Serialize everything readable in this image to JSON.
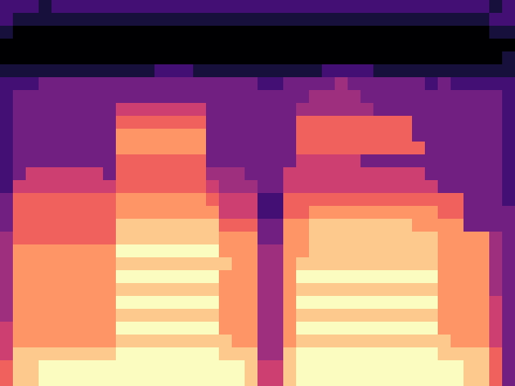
{
  "chart_data": {
    "type": "heatmap",
    "color": "magma",
    "tick_labels": false,
    "cells": [
      [
        2,
        2,
        2,
        1,
        2,
        2,
        2,
        2,
        2,
        2,
        2,
        2,
        2,
        2,
        2,
        2,
        2,
        2,
        2,
        2,
        2,
        2,
        2,
        2,
        2,
        2,
        2,
        2,
        2,
        2,
        2,
        2,
        2,
        2,
        2,
        2,
        2,
        2,
        1,
        2
      ],
      [
        2,
        1,
        1,
        1,
        1,
        1,
        1,
        1,
        1,
        1,
        1,
        1,
        1,
        1,
        1,
        1,
        1,
        1,
        1,
        1,
        1,
        1,
        1,
        1,
        1,
        1,
        1,
        1,
        1,
        1,
        1,
        1,
        1,
        1,
        1,
        1,
        1,
        1,
        2,
        2
      ],
      [
        1,
        0,
        0,
        0,
        0,
        0,
        0,
        0,
        0,
        0,
        0,
        0,
        0,
        0,
        0,
        0,
        0,
        0,
        0,
        0,
        0,
        0,
        0,
        0,
        0,
        0,
        0,
        0,
        0,
        0,
        0,
        0,
        0,
        0,
        0,
        0,
        0,
        0,
        1,
        1
      ],
      [
        0,
        0,
        0,
        0,
        0,
        0,
        0,
        0,
        0,
        0,
        0,
        0,
        0,
        0,
        0,
        0,
        0,
        0,
        0,
        0,
        0,
        0,
        0,
        0,
        0,
        0,
        0,
        0,
        0,
        0,
        0,
        0,
        0,
        0,
        0,
        0,
        0,
        0,
        0,
        0
      ],
      [
        0,
        0,
        0,
        0,
        0,
        0,
        0,
        0,
        0,
        0,
        0,
        0,
        0,
        0,
        0,
        0,
        0,
        0,
        0,
        0,
        0,
        0,
        0,
        0,
        0,
        0,
        0,
        0,
        0,
        0,
        0,
        0,
        0,
        0,
        0,
        0,
        0,
        0,
        0,
        1
      ],
      [
        1,
        1,
        1,
        1,
        1,
        1,
        1,
        1,
        1,
        1,
        1,
        1,
        2,
        2,
        2,
        1,
        1,
        1,
        1,
        1,
        1,
        1,
        1,
        1,
        1,
        2,
        2,
        2,
        2,
        1,
        1,
        1,
        1,
        1,
        1,
        1,
        1,
        1,
        1,
        1
      ],
      [
        2,
        2,
        2,
        3,
        3,
        3,
        3,
        3,
        3,
        3,
        3,
        3,
        3,
        3,
        3,
        3,
        3,
        3,
        3,
        3,
        2,
        2,
        3,
        3,
        3,
        3,
        4,
        3,
        3,
        3,
        3,
        3,
        3,
        2,
        3,
        2,
        2,
        2,
        2,
        2
      ],
      [
        2,
        3,
        3,
        3,
        3,
        3,
        3,
        3,
        3,
        3,
        3,
        3,
        3,
        3,
        3,
        3,
        3,
        3,
        3,
        3,
        3,
        3,
        3,
        3,
        4,
        4,
        4,
        4,
        3,
        3,
        3,
        3,
        3,
        3,
        3,
        3,
        3,
        3,
        3,
        2
      ],
      [
        2,
        3,
        3,
        3,
        3,
        3,
        3,
        3,
        3,
        5,
        5,
        5,
        5,
        5,
        5,
        5,
        3,
        3,
        3,
        3,
        3,
        3,
        3,
        4,
        4,
        4,
        4,
        4,
        4,
        3,
        3,
        3,
        3,
        3,
        3,
        3,
        3,
        3,
        3,
        2
      ],
      [
        2,
        3,
        3,
        3,
        3,
        3,
        3,
        3,
        3,
        6,
        6,
        6,
        6,
        6,
        6,
        6,
        3,
        3,
        3,
        3,
        3,
        3,
        3,
        6,
        6,
        6,
        6,
        6,
        6,
        6,
        6,
        6,
        3,
        3,
        3,
        3,
        3,
        3,
        3,
        2
      ],
      [
        2,
        3,
        3,
        3,
        3,
        3,
        3,
        3,
        3,
        7,
        7,
        7,
        7,
        7,
        7,
        7,
        3,
        3,
        3,
        3,
        3,
        3,
        3,
        6,
        6,
        6,
        6,
        6,
        6,
        6,
        6,
        6,
        3,
        3,
        3,
        3,
        3,
        3,
        3,
        2
      ],
      [
        2,
        3,
        3,
        3,
        3,
        3,
        3,
        3,
        3,
        7,
        7,
        7,
        7,
        7,
        7,
        7,
        3,
        3,
        3,
        3,
        3,
        3,
        3,
        6,
        6,
        6,
        6,
        6,
        6,
        6,
        6,
        6,
        6,
        3,
        3,
        3,
        3,
        3,
        3,
        2
      ],
      [
        2,
        3,
        3,
        3,
        3,
        3,
        3,
        3,
        3,
        6,
        6,
        6,
        6,
        6,
        6,
        6,
        3,
        3,
        3,
        3,
        3,
        3,
        3,
        5,
        5,
        5,
        5,
        5,
        3,
        3,
        3,
        3,
        3,
        3,
        3,
        3,
        3,
        3,
        3,
        2
      ],
      [
        2,
        3,
        5,
        5,
        5,
        5,
        5,
        5,
        3,
        6,
        6,
        6,
        6,
        6,
        6,
        6,
        4,
        4,
        4,
        3,
        3,
        3,
        5,
        5,
        5,
        5,
        5,
        5,
        5,
        5,
        5,
        5,
        5,
        3,
        3,
        3,
        3,
        3,
        3,
        2
      ],
      [
        2,
        5,
        5,
        5,
        5,
        5,
        5,
        5,
        5,
        6,
        6,
        6,
        6,
        6,
        6,
        6,
        5,
        4,
        4,
        4,
        3,
        3,
        5,
        5,
        5,
        5,
        5,
        5,
        5,
        5,
        5,
        5,
        5,
        5,
        3,
        3,
        3,
        3,
        3,
        2
      ],
      [
        3,
        6,
        6,
        6,
        6,
        6,
        6,
        6,
        6,
        7,
        7,
        7,
        7,
        7,
        7,
        7,
        6,
        5,
        5,
        5,
        2,
        2,
        6,
        6,
        6,
        6,
        6,
        6,
        6,
        6,
        6,
        6,
        6,
        6,
        6,
        6,
        3,
        3,
        3,
        2
      ],
      [
        3,
        6,
        6,
        6,
        6,
        6,
        6,
        6,
        6,
        7,
        7,
        7,
        7,
        7,
        7,
        7,
        7,
        5,
        5,
        5,
        2,
        2,
        6,
        6,
        7,
        7,
        7,
        7,
        7,
        7,
        7,
        7,
        7,
        7,
        6,
        6,
        3,
        3,
        3,
        3
      ],
      [
        3,
        6,
        6,
        6,
        6,
        6,
        6,
        6,
        6,
        8,
        8,
        8,
        8,
        8,
        8,
        8,
        8,
        6,
        6,
        6,
        3,
        3,
        7,
        7,
        8,
        8,
        8,
        8,
        8,
        8,
        8,
        8,
        7,
        7,
        7,
        7,
        3,
        3,
        3,
        3
      ],
      [
        4,
        6,
        6,
        6,
        6,
        6,
        6,
        6,
        6,
        8,
        8,
        8,
        8,
        8,
        8,
        8,
        8,
        7,
        7,
        7,
        3,
        3,
        7,
        7,
        8,
        8,
        8,
        8,
        8,
        8,
        8,
        8,
        8,
        8,
        7,
        7,
        7,
        7,
        4,
        3
      ],
      [
        4,
        7,
        7,
        7,
        7,
        7,
        7,
        7,
        7,
        9,
        9,
        9,
        9,
        9,
        9,
        9,
        9,
        7,
        7,
        7,
        4,
        4,
        7,
        7,
        8,
        8,
        8,
        8,
        8,
        8,
        8,
        8,
        8,
        8,
        7,
        7,
        7,
        7,
        4,
        3
      ],
      [
        4,
        7,
        7,
        7,
        7,
        7,
        7,
        7,
        7,
        8,
        8,
        8,
        8,
        8,
        8,
        8,
        8,
        8,
        7,
        7,
        4,
        4,
        7,
        8,
        8,
        8,
        8,
        8,
        8,
        8,
        8,
        8,
        8,
        8,
        7,
        7,
        7,
        7,
        4,
        3
      ],
      [
        4,
        7,
        7,
        7,
        7,
        7,
        7,
        7,
        7,
        9,
        9,
        9,
        9,
        9,
        9,
        9,
        9,
        7,
        7,
        7,
        4,
        4,
        7,
        9,
        9,
        9,
        9,
        9,
        9,
        9,
        9,
        9,
        9,
        9,
        7,
        7,
        7,
        7,
        4,
        3
      ],
      [
        4,
        7,
        7,
        7,
        7,
        7,
        7,
        7,
        7,
        8,
        8,
        8,
        8,
        8,
        8,
        8,
        8,
        7,
        7,
        7,
        4,
        4,
        7,
        8,
        8,
        8,
        8,
        8,
        8,
        8,
        8,
        8,
        8,
        8,
        7,
        7,
        7,
        7,
        4,
        3
      ],
      [
        4,
        7,
        7,
        7,
        7,
        7,
        7,
        7,
        7,
        9,
        9,
        9,
        9,
        9,
        9,
        9,
        9,
        7,
        7,
        7,
        4,
        4,
        7,
        9,
        9,
        9,
        9,
        9,
        9,
        9,
        9,
        9,
        9,
        9,
        7,
        7,
        7,
        7,
        5,
        3
      ],
      [
        4,
        7,
        7,
        7,
        7,
        7,
        7,
        7,
        7,
        8,
        8,
        8,
        8,
        8,
        8,
        8,
        8,
        7,
        7,
        7,
        4,
        4,
        7,
        8,
        8,
        8,
        8,
        8,
        8,
        8,
        8,
        8,
        8,
        8,
        7,
        7,
        7,
        7,
        5,
        3
      ],
      [
        5,
        7,
        7,
        7,
        7,
        7,
        7,
        7,
        7,
        9,
        9,
        9,
        9,
        9,
        9,
        9,
        9,
        7,
        7,
        7,
        4,
        4,
        7,
        9,
        9,
        9,
        9,
        9,
        9,
        9,
        9,
        9,
        9,
        9,
        7,
        7,
        7,
        7,
        5,
        3
      ],
      [
        5,
        7,
        7,
        7,
        7,
        7,
        7,
        7,
        7,
        8,
        8,
        8,
        8,
        8,
        8,
        8,
        8,
        8,
        7,
        7,
        4,
        4,
        7,
        8,
        8,
        8,
        8,
        8,
        8,
        8,
        8,
        8,
        8,
        8,
        8,
        7,
        7,
        7,
        5,
        3
      ],
      [
        5,
        8,
        8,
        8,
        8,
        8,
        8,
        8,
        8,
        9,
        9,
        9,
        9,
        9,
        9,
        9,
        9,
        8,
        8,
        8,
        4,
        4,
        8,
        9,
        9,
        9,
        9,
        9,
        9,
        9,
        9,
        9,
        9,
        9,
        8,
        8,
        8,
        8,
        6,
        3
      ],
      [
        6,
        8,
        8,
        9,
        9,
        9,
        9,
        9,
        9,
        9,
        9,
        9,
        9,
        9,
        9,
        9,
        9,
        9,
        9,
        8,
        5,
        5,
        8,
        9,
        9,
        9,
        9,
        9,
        9,
        9,
        9,
        9,
        9,
        9,
        9,
        9,
        8,
        8,
        6,
        3
      ],
      [
        6,
        8,
        8,
        9,
        9,
        9,
        9,
        9,
        9,
        9,
        9,
        9,
        9,
        9,
        9,
        9,
        9,
        9,
        9,
        8,
        5,
        5,
        8,
        9,
        9,
        9,
        9,
        9,
        9,
        9,
        9,
        9,
        9,
        9,
        9,
        9,
        8,
        8,
        6,
        3
      ]
    ]
  }
}
